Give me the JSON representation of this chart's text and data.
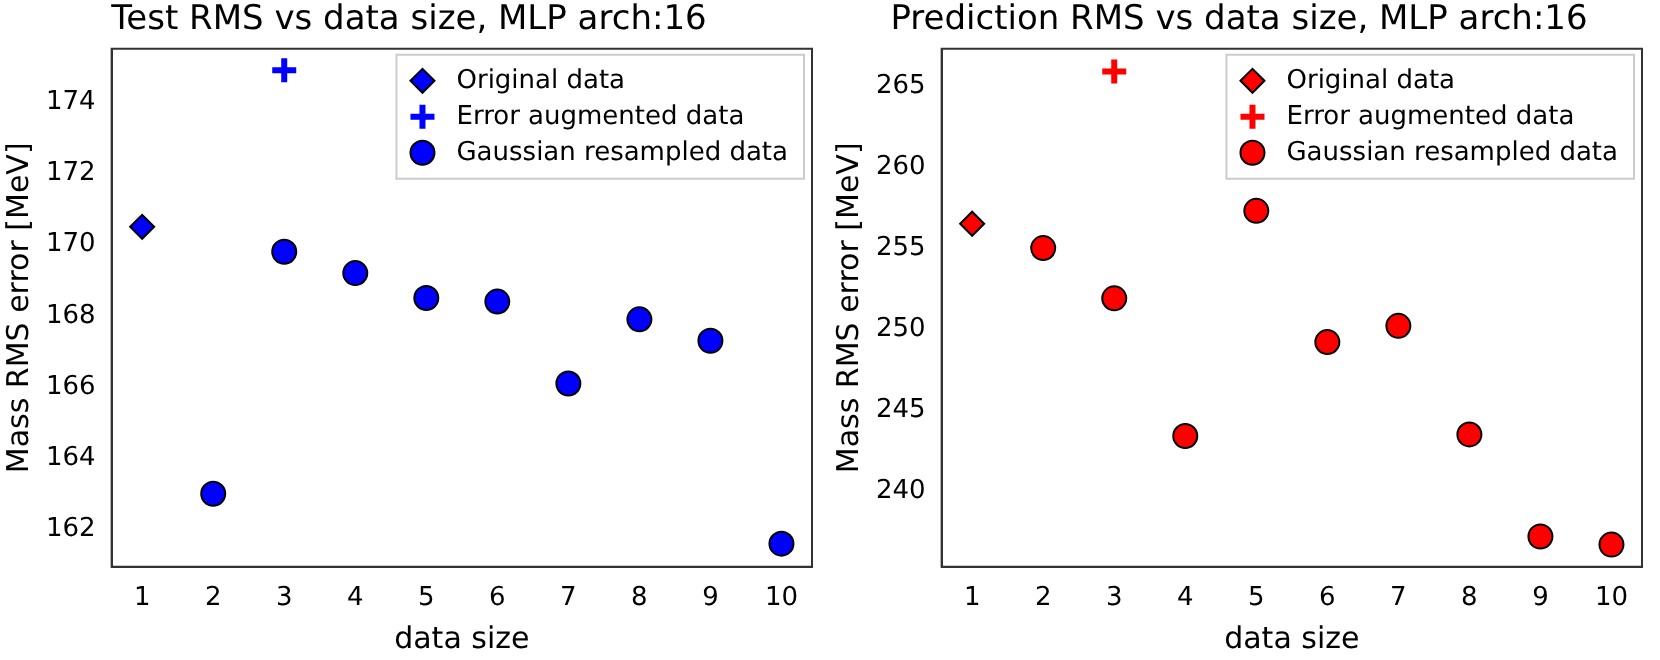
{
  "chart_data": [
    {
      "type": "scatter",
      "title": "Test RMS vs data size, MLP arch:16",
      "xlabel": "data size",
      "ylabel": "Mass RMS error [MeV]",
      "xlim": [
        0.57,
        10.43
      ],
      "xticks": [
        1,
        2,
        3,
        4,
        5,
        6,
        7,
        8,
        9,
        10
      ],
      "ylim": [
        160.95,
        175.5
      ],
      "yticks": [
        162,
        164,
        166,
        168,
        170,
        172,
        174
      ],
      "grid": false,
      "legend": "top right",
      "series": [
        {
          "name": "Original data",
          "color": "#0000ff",
          "marker": "diamond",
          "x": [
            1
          ],
          "values": [
            170.5
          ]
        },
        {
          "name": "Error augmented data",
          "color": "#0000ff",
          "marker": "cross",
          "x": [
            3
          ],
          "values": [
            174.9
          ]
        },
        {
          "name": "Gaussian resampled data",
          "color": "#0000ff",
          "marker": "circle",
          "x": [
            2,
            3,
            4,
            5,
            6,
            7,
            8,
            9,
            10
          ],
          "values": [
            163.0,
            169.8,
            169.2,
            168.5,
            168.4,
            166.1,
            167.9,
            167.3,
            161.6
          ]
        }
      ]
    },
    {
      "type": "scatter",
      "title": "Prediction RMS vs data size, MLP arch:16",
      "xlabel": "data size",
      "ylabel": "Mass RMS error [MeV]",
      "xlim": [
        0.57,
        10.43
      ],
      "xticks": [
        1,
        2,
        3,
        4,
        5,
        6,
        7,
        8,
        9,
        10
      ],
      "ylim": [
        235.33,
        267.3
      ],
      "yticks": [
        240,
        245,
        250,
        255,
        260,
        265
      ],
      "grid": false,
      "legend": "top right",
      "series": [
        {
          "name": "Original data",
          "color": "#ff0000",
          "marker": "diamond",
          "x": [
            1
          ],
          "values": [
            256.5
          ]
        },
        {
          "name": "Error augmented data",
          "color": "#ff0000",
          "marker": "cross",
          "x": [
            3
          ],
          "values": [
            265.9
          ]
        },
        {
          "name": "Gaussian resampled data",
          "color": "#ff0000",
          "marker": "circle",
          "x": [
            2,
            3,
            4,
            5,
            6,
            7,
            8,
            9,
            10
          ],
          "values": [
            255.0,
            251.9,
            243.4,
            257.3,
            249.2,
            250.2,
            243.5,
            237.2,
            236.7
          ]
        }
      ]
    }
  ]
}
